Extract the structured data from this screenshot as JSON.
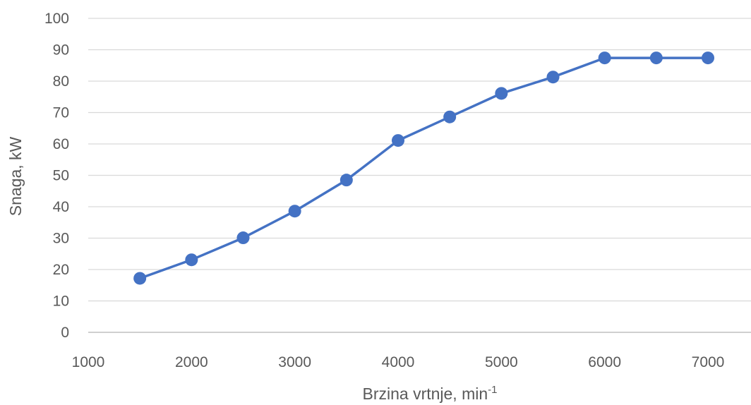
{
  "chart_data": {
    "type": "line",
    "title": "",
    "xlabel": "Brzina vrtnje, min",
    "xlabel_superscript": "-1",
    "ylabel": "Snaga, kW",
    "xlim": [
      1000,
      7000
    ],
    "ylim": [
      0,
      100
    ],
    "x_ticks": [
      1000,
      2000,
      3000,
      4000,
      5000,
      6000,
      7000
    ],
    "y_ticks": [
      0,
      10,
      20,
      30,
      40,
      50,
      60,
      70,
      80,
      90,
      100
    ],
    "grid": "horizontal",
    "legend": "none",
    "series": [
      {
        "color": "#4472c4",
        "marker": "circle",
        "points": [
          {
            "x": 1500,
            "y": 17.2
          },
          {
            "x": 2000,
            "y": 23.1
          },
          {
            "x": 2500,
            "y": 30.1
          },
          {
            "x": 3000,
            "y": 38.6
          },
          {
            "x": 3500,
            "y": 48.5
          },
          {
            "x": 4000,
            "y": 61.1
          },
          {
            "x": 4500,
            "y": 68.6
          },
          {
            "x": 5000,
            "y": 76.1
          },
          {
            "x": 5500,
            "y": 81.3
          },
          {
            "x": 6000,
            "y": 87.4
          },
          {
            "x": 6500,
            "y": 87.4
          },
          {
            "x": 7000,
            "y": 87.4
          }
        ]
      }
    ]
  }
}
